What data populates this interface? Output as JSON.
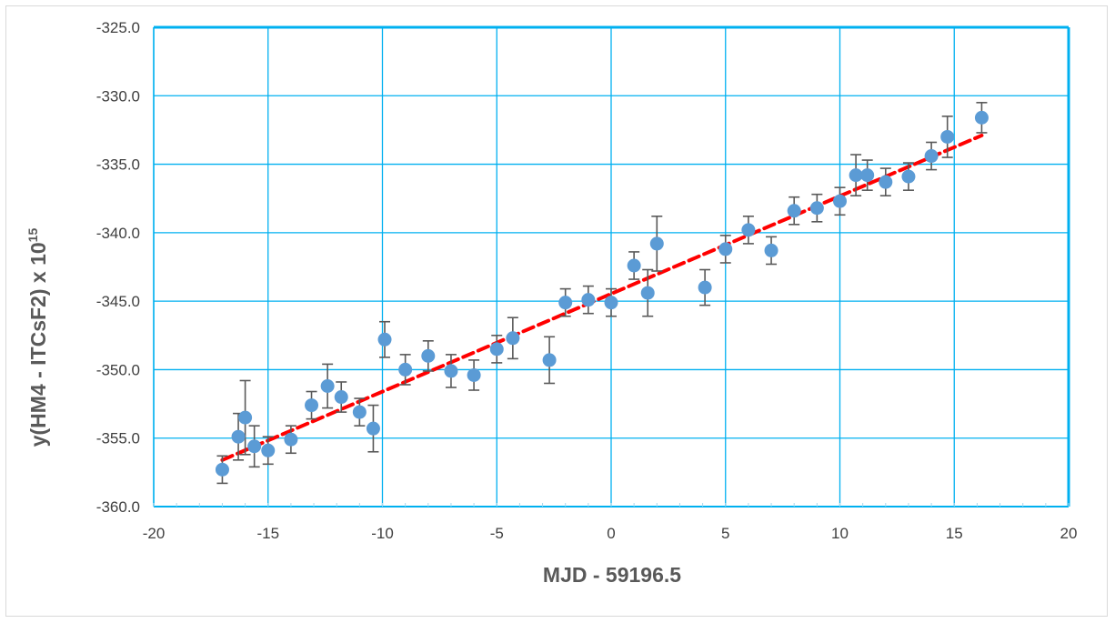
{
  "chart_data": {
    "type": "scatter",
    "title": "",
    "xlabel": "MJD - 59196.5",
    "ylabel_main": "y(HM4 - ITCsF2) x 10",
    "ylabel_exponent": "15",
    "xlim": [
      -20,
      20
    ],
    "ylim": [
      -360,
      -325
    ],
    "x_ticks": [
      -20,
      -15,
      -10,
      -5,
      0,
      5,
      10,
      15,
      20
    ],
    "y_ticks": [
      -325,
      -330,
      -335,
      -340,
      -345,
      -350,
      -355,
      -360
    ],
    "grid": true,
    "colors": {
      "points": "#5b9bd5",
      "fit_line": "#ff0000",
      "grid": "#00b0f0",
      "error_bars": "#595959"
    },
    "series": [
      {
        "type": "scatter_with_error_bars",
        "points": [
          {
            "x": -17.0,
            "y": -357.3,
            "err": 1.0
          },
          {
            "x": -16.3,
            "y": -354.9,
            "err": 1.7
          },
          {
            "x": -16.0,
            "y": -353.5,
            "err": 2.7
          },
          {
            "x": -15.6,
            "y": -355.6,
            "err": 1.5
          },
          {
            "x": -15.0,
            "y": -355.9,
            "err": 1.0
          },
          {
            "x": -14.0,
            "y": -355.1,
            "err": 1.0
          },
          {
            "x": -13.1,
            "y": -352.6,
            "err": 1.0
          },
          {
            "x": -12.4,
            "y": -351.2,
            "err": 1.6
          },
          {
            "x": -11.8,
            "y": -352.0,
            "err": 1.1
          },
          {
            "x": -11.0,
            "y": -353.1,
            "err": 1.0
          },
          {
            "x": -10.4,
            "y": -354.3,
            "err": 1.7
          },
          {
            "x": -9.9,
            "y": -347.8,
            "err": 1.3
          },
          {
            "x": -9.0,
            "y": -350.0,
            "err": 1.1
          },
          {
            "x": -8.0,
            "y": -349.0,
            "err": 1.1
          },
          {
            "x": -7.0,
            "y": -350.1,
            "err": 1.2
          },
          {
            "x": -6.0,
            "y": -350.4,
            "err": 1.1
          },
          {
            "x": -5.0,
            "y": -348.5,
            "err": 1.0
          },
          {
            "x": -4.3,
            "y": -347.7,
            "err": 1.5
          },
          {
            "x": -2.7,
            "y": -349.3,
            "err": 1.7
          },
          {
            "x": -2.0,
            "y": -345.1,
            "err": 1.0
          },
          {
            "x": -1.0,
            "y": -344.9,
            "err": 1.0
          },
          {
            "x": 0.0,
            "y": -345.1,
            "err": 1.0
          },
          {
            "x": 1.0,
            "y": -342.4,
            "err": 1.0
          },
          {
            "x": 1.6,
            "y": -344.4,
            "err": 1.7
          },
          {
            "x": 2.0,
            "y": -340.8,
            "err": 2.0
          },
          {
            "x": 4.1,
            "y": -344.0,
            "err": 1.3
          },
          {
            "x": 5.0,
            "y": -341.2,
            "err": 1.0
          },
          {
            "x": 6.0,
            "y": -339.8,
            "err": 1.0
          },
          {
            "x": 7.0,
            "y": -341.3,
            "err": 1.0
          },
          {
            "x": 8.0,
            "y": -338.4,
            "err": 1.0
          },
          {
            "x": 9.0,
            "y": -338.2,
            "err": 1.0
          },
          {
            "x": 10.0,
            "y": -337.7,
            "err": 1.0
          },
          {
            "x": 10.7,
            "y": -335.8,
            "err": 1.5
          },
          {
            "x": 11.2,
            "y": -335.8,
            "err": 1.1
          },
          {
            "x": 12.0,
            "y": -336.3,
            "err": 1.0
          },
          {
            "x": 13.0,
            "y": -335.9,
            "err": 1.0
          },
          {
            "x": 14.0,
            "y": -334.4,
            "err": 1.0
          },
          {
            "x": 14.7,
            "y": -333.0,
            "err": 1.5
          },
          {
            "x": 16.2,
            "y": -331.6,
            "err": 1.1
          }
        ]
      },
      {
        "type": "linear_fit",
        "style": "dashed",
        "x": [
          -17.0,
          16.2
        ],
        "y": [
          -356.6,
          -332.9
        ]
      }
    ]
  }
}
